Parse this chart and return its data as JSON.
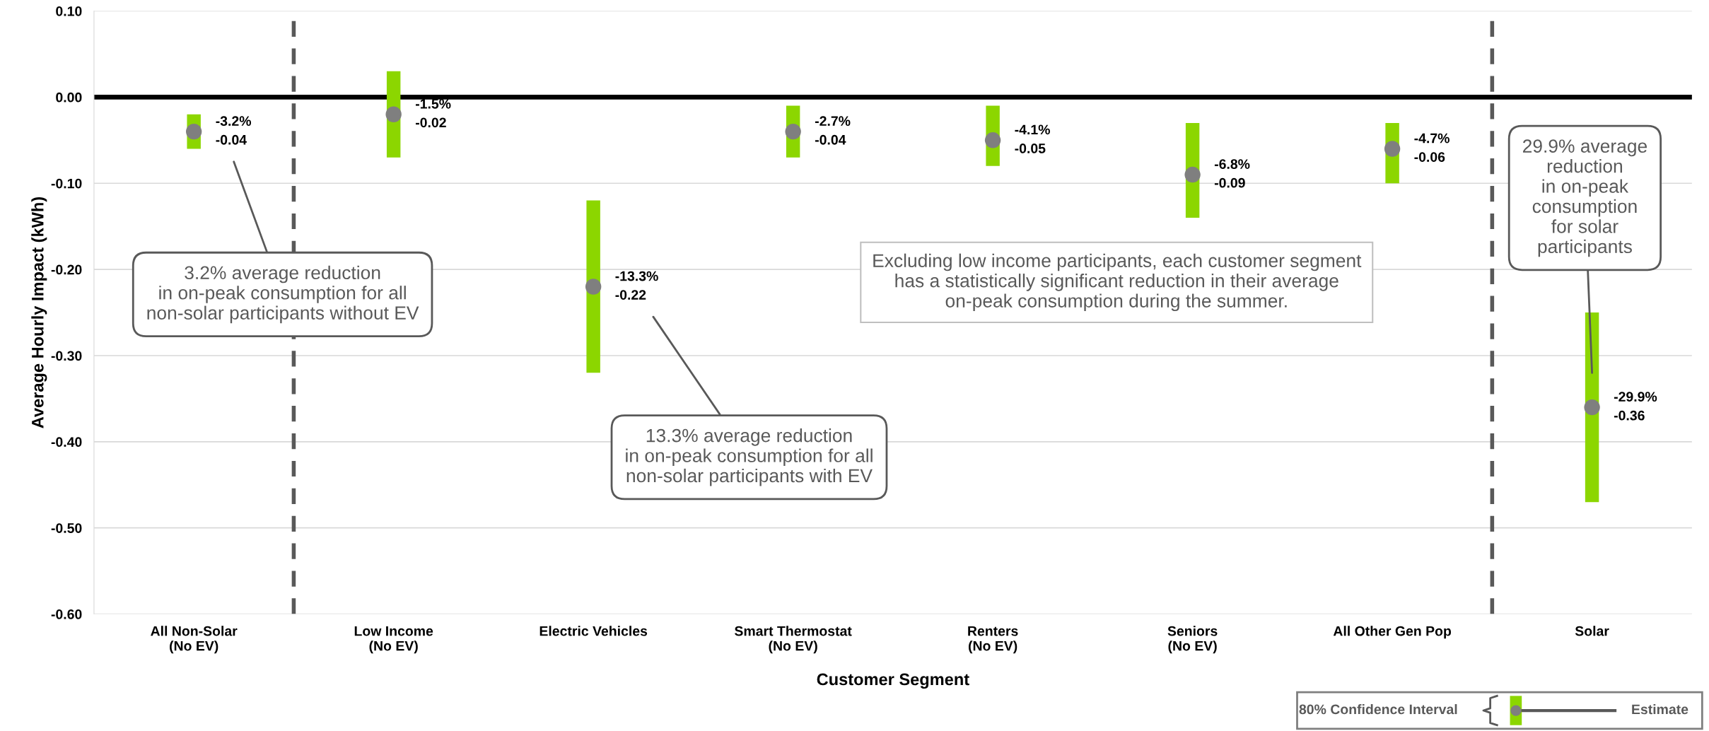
{
  "chart_data": {
    "type": "scatter",
    "xlabel": "Customer Segment",
    "ylabel": "Average Hourly Impact (kWh)",
    "categories": [
      "All Non-Solar\n(No EV)",
      "Low Income\n(No EV)",
      "Electric Vehicles",
      "Smart Thermostat\n(No EV)",
      "Renters\n(No EV)",
      "Seniors\n(No EV)",
      "All Other Gen Pop",
      "Solar"
    ],
    "series": [
      {
        "color": "#7f7f7f",
        "values": [
          -0.04,
          -0.02,
          -0.22,
          -0.04,
          -0.05,
          -0.09,
          -0.06,
          -0.36
        ],
        "errors": [
          [
            -0.06,
            -0.02
          ],
          [
            -0.07,
            0.03
          ],
          [
            -0.32,
            -0.12
          ],
          [
            -0.07,
            -0.01
          ],
          [
            -0.08,
            -0.01
          ],
          [
            -0.14,
            -0.03
          ],
          [
            -0.1,
            -0.03
          ],
          [
            -0.47,
            -0.25
          ]
        ],
        "value_labels": [
          "-3.2%\n-0.04",
          "-1.5%\n-0.02",
          "-13.3%\n-0.22",
          "-2.7%\n-0.04",
          "-4.1%\n-0.05",
          "-6.8%\n-0.09",
          "-4.7%\n-0.06",
          "-29.9%\n-0.36"
        ]
      }
    ],
    "ylim": [
      -0.6,
      0.1
    ],
    "yticks": [
      {
        "value": 0.1,
        "label": "0.10"
      },
      {
        "value": 0.0,
        "label": "0.00"
      },
      {
        "value": -0.1,
        "label": "-0.10"
      },
      {
        "value": -0.2,
        "label": "-0.20"
      },
      {
        "value": -0.3,
        "label": "-0.30"
      },
      {
        "value": -0.4,
        "label": "-0.40"
      },
      {
        "value": -0.5,
        "label": "-0.50"
      },
      {
        "value": -0.6,
        "label": "-0.60"
      }
    ],
    "grid": "y",
    "marker": "circle",
    "ref_lines": [
      {
        "axis": "y",
        "value": 0,
        "color": "#000000",
        "line_style": "solid"
      }
    ],
    "annotations": [
      "3.2% average reduction\nin on-peak consumption for all\nnon-solar participants without EV",
      "13.3% average reduction\nin on-peak consumption for all\nnon-solar participants with EV",
      {
        "text": "29.9% average\nreduction\nin on-peak\nconsumption\nfor solar\nparticipants",
        "x": "Solar",
        "y": -0.32
      },
      "Excluding low income participants, each customer segment\nhas a statistically significant reduction in their average\non-peak consumption during the summer.",
      "80% Confidence Interval",
      "Estimate"
    ]
  }
}
